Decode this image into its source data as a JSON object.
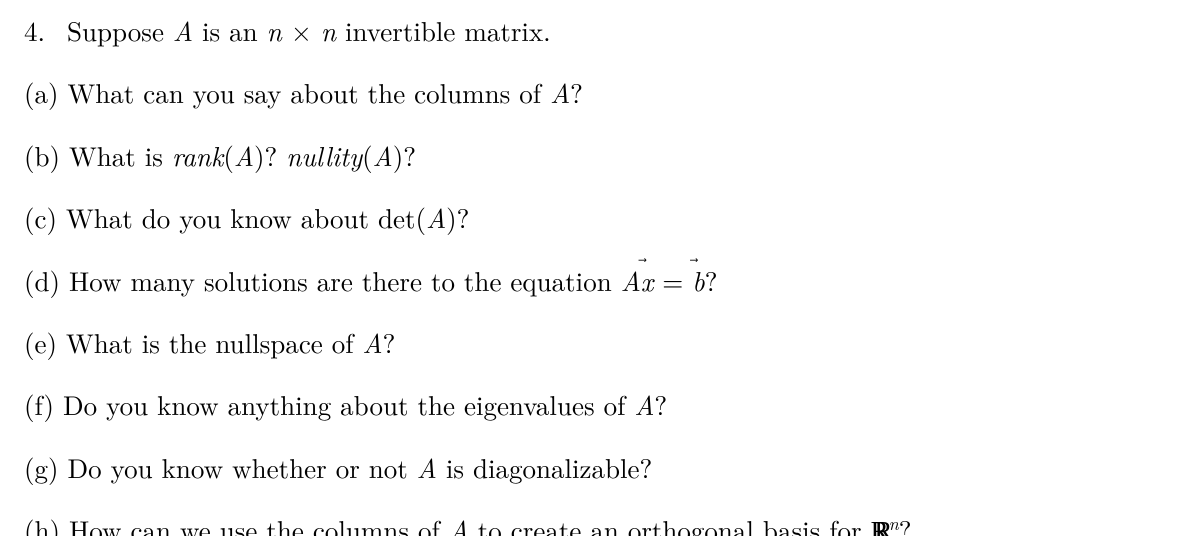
{
  "problem": {
    "number": "4.",
    "intro_prefix": "Suppose ",
    "intro_mid": " is an ",
    "intro_suffix": " invertible matrix.",
    "var_A": "A",
    "var_n": "n",
    "times": "×"
  },
  "parts": {
    "a": {
      "label": "(a)",
      "prefix": "What can you say about the columns of ",
      "var": "A",
      "suffix": "?"
    },
    "b": {
      "label": "(b)",
      "prefix": "What is ",
      "rank": "rank",
      "open": "(",
      "var": "A",
      "close": ")?",
      "sep": " ",
      "nullity": "nullity",
      "open2": "(",
      "var2": "A",
      "close2": ")?"
    },
    "c": {
      "label": "(c)",
      "prefix": "What do you know about det",
      "open": "(",
      "var": "A",
      "close": ")?"
    },
    "d": {
      "label": "(d)",
      "prefix": "How many solutions are there to the equation ",
      "A": "A",
      "x": "x",
      "eq": " = ",
      "b": "b",
      "suffix": "?"
    },
    "e": {
      "label": "(e)",
      "prefix": "What is the nullspace of ",
      "var": "A",
      "suffix": "?"
    },
    "f": {
      "label": "(f)",
      "prefix": "Do you know anything about the eigenvalues of ",
      "var": "A",
      "suffix": "?"
    },
    "g": {
      "label": "(g)",
      "prefix": "Do you know whether or not ",
      "var": "A",
      "suffix": " is diagonalizable?"
    },
    "h": {
      "label": "(h)",
      "prefix": "How can we use the columns of ",
      "var": "A",
      "mid": " to create an orthogonal basis for ",
      "exp": "n",
      "suffix": "?"
    }
  },
  "style": {
    "font_size_pt": 20,
    "text_color": "#000000",
    "background_color": "#ffffff"
  }
}
